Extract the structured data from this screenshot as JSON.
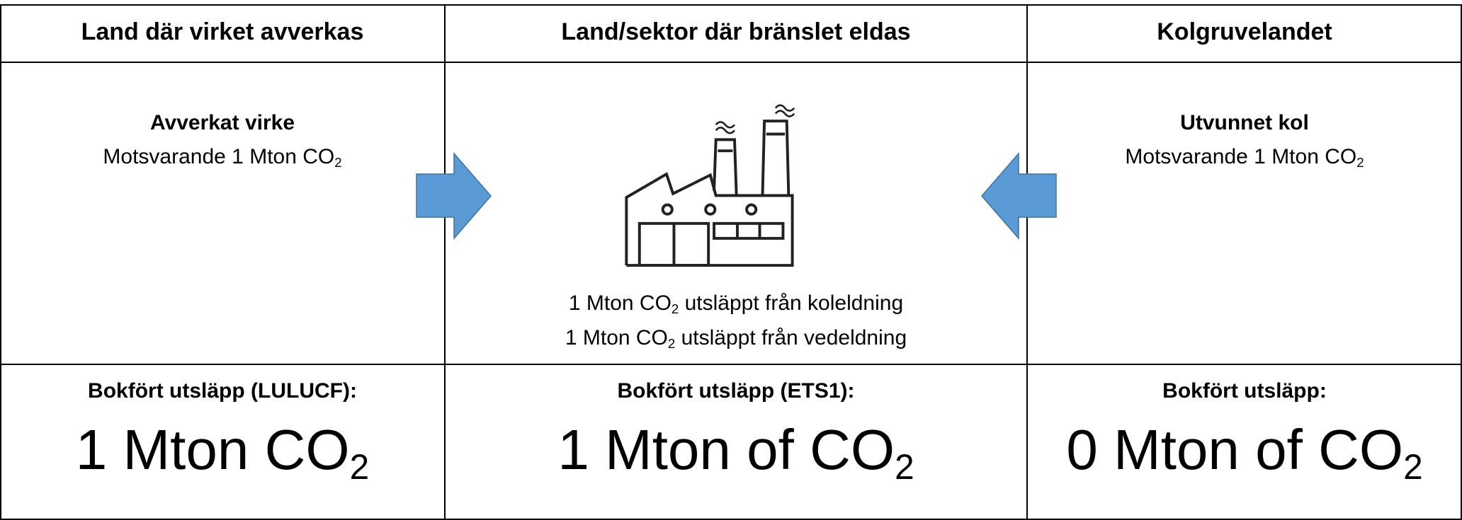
{
  "columns": [
    {
      "header": "Land där virket avverkas",
      "source": {
        "title": "Avverkat virke",
        "text": "Motsvarande 1 Mton CO",
        "sub": "2"
      },
      "booked": {
        "label": "Bokfört utsläpp (LULUCF):",
        "text": "1 Mton CO",
        "sub": "2"
      }
    },
    {
      "header": "Land/sektor där bränslet eldas",
      "emissions": [
        {
          "text": "1 Mton CO",
          "sub": "2",
          "rest": " utsläppt från koleldning"
        },
        {
          "text": "1 Mton CO",
          "sub": "2",
          "rest": " utsläppt från vedeldning"
        }
      ],
      "booked": {
        "label": "Bokfört utsläpp (ETS1):",
        "text": "1 Mton of CO",
        "sub": "2"
      }
    },
    {
      "header": "Kolgruvelandet",
      "source": {
        "title": "Utvunnet kol",
        "text": "Motsvarande 1 Mton CO",
        "sub": "2"
      },
      "booked": {
        "label": "Bokfört utsläpp:",
        "text": "0 Mton of CO",
        "sub": "2"
      }
    }
  ]
}
